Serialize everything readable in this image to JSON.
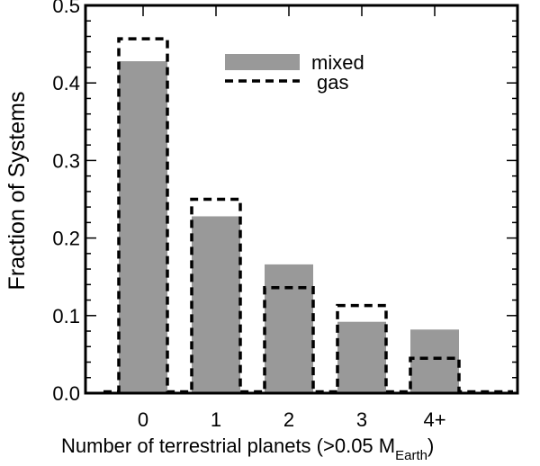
{
  "chart_data": {
    "type": "bar",
    "categories": [
      "0",
      "1",
      "2",
      "3",
      "4+"
    ],
    "series": [
      {
        "name": "mixed",
        "style": "filled",
        "color": "#999999",
        "values": [
          0.428,
          0.228,
          0.166,
          0.092,
          0.082
        ]
      },
      {
        "name": "gas",
        "style": "dashed-outline",
        "color": "#000000",
        "values": [
          0.457,
          0.25,
          0.136,
          0.113,
          0.045
        ]
      }
    ],
    "xlabel": "Number of terrestrial planets (>0.05 M",
    "xlabel_subscript": "Earth",
    "xlabel_suffix": ")",
    "ylabel": "Fraction of Systems",
    "ylim": [
      0,
      0.5
    ],
    "yticks": [
      0.0,
      0.1,
      0.2,
      0.3,
      0.4,
      0.5
    ],
    "ytick_labels": [
      "0.0",
      "0.1",
      "0.2",
      "0.3",
      "0.4",
      "0.5"
    ],
    "grid": false,
    "legend_position": "top-right"
  }
}
